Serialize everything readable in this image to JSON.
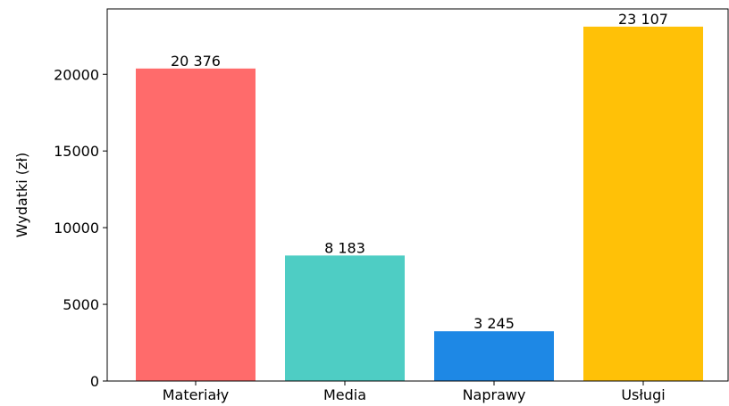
{
  "chart_data": {
    "type": "bar",
    "title": "",
    "xlabel": "",
    "ylabel": "Wydatki (zł)",
    "categories": [
      "Materiały",
      "Media",
      "Naprawy",
      "Usługi"
    ],
    "values": [
      20376,
      8183,
      3245,
      23107
    ],
    "value_labels": [
      "20 376",
      "8 183",
      "3 245",
      "23 107"
    ],
    "colors": [
      "#ff6b6b",
      "#4ecdc4",
      "#1e88e5",
      "#ffc107"
    ],
    "ylim": [
      0,
      24262
    ],
    "yticks": [
      0,
      5000,
      10000,
      15000,
      20000
    ],
    "ytick_labels": [
      "0",
      "5000",
      "10000",
      "15000",
      "20000"
    ],
    "grid": false,
    "legend": "none"
  }
}
